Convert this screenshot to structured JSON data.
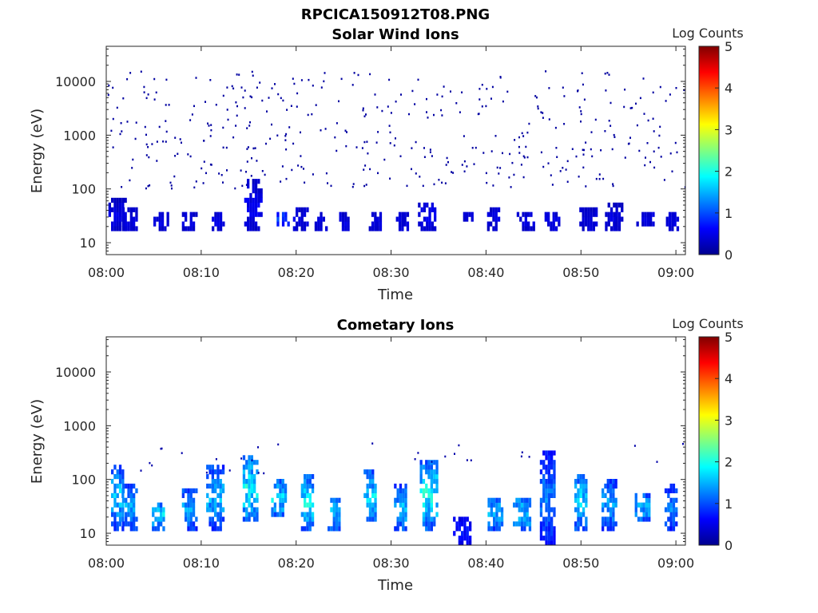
{
  "figure": {
    "title": "RPCICA150912T08.PNG"
  },
  "colors": {
    "colormap": [
      "#00008f",
      "#0000ff",
      "#0080ff",
      "#00ffff",
      "#80ff80",
      "#ffff00",
      "#ff8000",
      "#ff0000",
      "#800000"
    ],
    "axis": "#262626",
    "background": "#ffffff"
  },
  "chart_data": [
    {
      "type": "heatmap",
      "title": "Solar Wind Ions",
      "xlabel": "Time",
      "ylabel": "Energy (eV)",
      "xlim": [
        "08:00",
        "09:01"
      ],
      "x_ticks": [
        "08:00",
        "08:10",
        "08:20",
        "08:30",
        "08:40",
        "08:50",
        "09:00"
      ],
      "yscale": "log",
      "ylim": [
        6,
        45000
      ],
      "y_ticks": [
        "10",
        "100",
        "1000",
        "10000"
      ],
      "colorbar": {
        "label": "Log Counts",
        "range": [
          0,
          5
        ],
        "ticks": [
          "0",
          "1",
          "2",
          "3",
          "4",
          "5"
        ]
      },
      "bursts": [
        {
          "t": 1.2,
          "emin": 15,
          "emax": 70,
          "level": 0.5
        },
        {
          "t": 2.5,
          "emin": 15,
          "emax": 50,
          "level": 0.5
        },
        {
          "t": 5.8,
          "emin": 15,
          "emax": 35,
          "level": 0.5
        },
        {
          "t": 8.8,
          "emin": 15,
          "emax": 40,
          "level": 0.5
        },
        {
          "t": 11.8,
          "emin": 15,
          "emax": 40,
          "level": 0.5
        },
        {
          "t": 15.5,
          "emin": 15,
          "emax": 150,
          "level": 0.6
        },
        {
          "t": 18.5,
          "emin": 20,
          "emax": 40,
          "level": 1.0
        },
        {
          "t": 20.5,
          "emin": 15,
          "emax": 50,
          "level": 0.5
        },
        {
          "t": 22.5,
          "emin": 15,
          "emax": 40,
          "level": 0.5
        },
        {
          "t": 24.8,
          "emin": 15,
          "emax": 40,
          "level": 0.5
        },
        {
          "t": 28.2,
          "emin": 15,
          "emax": 40,
          "level": 0.5
        },
        {
          "t": 31.2,
          "emin": 15,
          "emax": 40,
          "level": 0.5
        },
        {
          "t": 33.8,
          "emin": 15,
          "emax": 60,
          "level": 0.6
        },
        {
          "t": 38.0,
          "emin": 25,
          "emax": 40,
          "level": 0.5
        },
        {
          "t": 40.8,
          "emin": 15,
          "emax": 50,
          "level": 0.5
        },
        {
          "t": 44.2,
          "emin": 15,
          "emax": 40,
          "level": 0.5
        },
        {
          "t": 47.0,
          "emin": 15,
          "emax": 40,
          "level": 0.5
        },
        {
          "t": 50.8,
          "emin": 15,
          "emax": 50,
          "level": 0.5
        },
        {
          "t": 53.5,
          "emin": 15,
          "emax": 60,
          "level": 0.5
        },
        {
          "t": 56.8,
          "emin": 20,
          "emax": 40,
          "level": 0.5
        },
        {
          "t": 59.5,
          "emin": 15,
          "emax": 40,
          "level": 0.5
        }
      ]
    },
    {
      "type": "heatmap",
      "title": "Cometary Ions",
      "xlabel": "Time",
      "ylabel": "Energy (eV)",
      "xlim": [
        "08:00",
        "09:01"
      ],
      "x_ticks": [
        "08:00",
        "08:10",
        "08:20",
        "08:30",
        "08:40",
        "08:50",
        "09:00"
      ],
      "yscale": "log",
      "ylim": [
        6,
        45000
      ],
      "y_ticks": [
        "10",
        "100",
        "1000",
        "10000"
      ],
      "colorbar": {
        "label": "Log Counts",
        "range": [
          0,
          5
        ],
        "ticks": [
          "0",
          "1",
          "2",
          "3",
          "4",
          "5"
        ]
      },
      "bursts": [
        {
          "t": 1.2,
          "emin": 12,
          "emax": 200,
          "level": 1.8
        },
        {
          "t": 2.5,
          "emin": 12,
          "emax": 90,
          "level": 1.6
        },
        {
          "t": 5.5,
          "emin": 12,
          "emax": 40,
          "level": 1.8
        },
        {
          "t": 8.8,
          "emin": 12,
          "emax": 70,
          "level": 1.6
        },
        {
          "t": 11.5,
          "emin": 12,
          "emax": 200,
          "level": 1.7
        },
        {
          "t": 15.2,
          "emin": 15,
          "emax": 280,
          "level": 2.1
        },
        {
          "t": 18.2,
          "emin": 20,
          "emax": 100,
          "level": 1.9
        },
        {
          "t": 21.2,
          "emin": 12,
          "emax": 120,
          "level": 2.0
        },
        {
          "t": 24.0,
          "emin": 12,
          "emax": 50,
          "level": 1.8
        },
        {
          "t": 27.8,
          "emin": 15,
          "emax": 150,
          "level": 1.9
        },
        {
          "t": 31.0,
          "emin": 10,
          "emax": 80,
          "level": 1.7
        },
        {
          "t": 34.0,
          "emin": 12,
          "emax": 230,
          "level": 2.1
        },
        {
          "t": 37.5,
          "emin": 6,
          "emax": 20,
          "level": 0.8
        },
        {
          "t": 41.0,
          "emin": 12,
          "emax": 50,
          "level": 1.7
        },
        {
          "t": 43.8,
          "emin": 12,
          "emax": 50,
          "level": 1.8
        },
        {
          "t": 46.5,
          "emin": 6,
          "emax": 350,
          "level": 1.4
        },
        {
          "t": 50.0,
          "emin": 12,
          "emax": 130,
          "level": 1.9
        },
        {
          "t": 53.0,
          "emin": 12,
          "emax": 100,
          "level": 1.6
        },
        {
          "t": 56.5,
          "emin": 15,
          "emax": 60,
          "level": 1.6
        },
        {
          "t": 59.5,
          "emin": 12,
          "emax": 80,
          "level": 1.5
        }
      ]
    }
  ]
}
